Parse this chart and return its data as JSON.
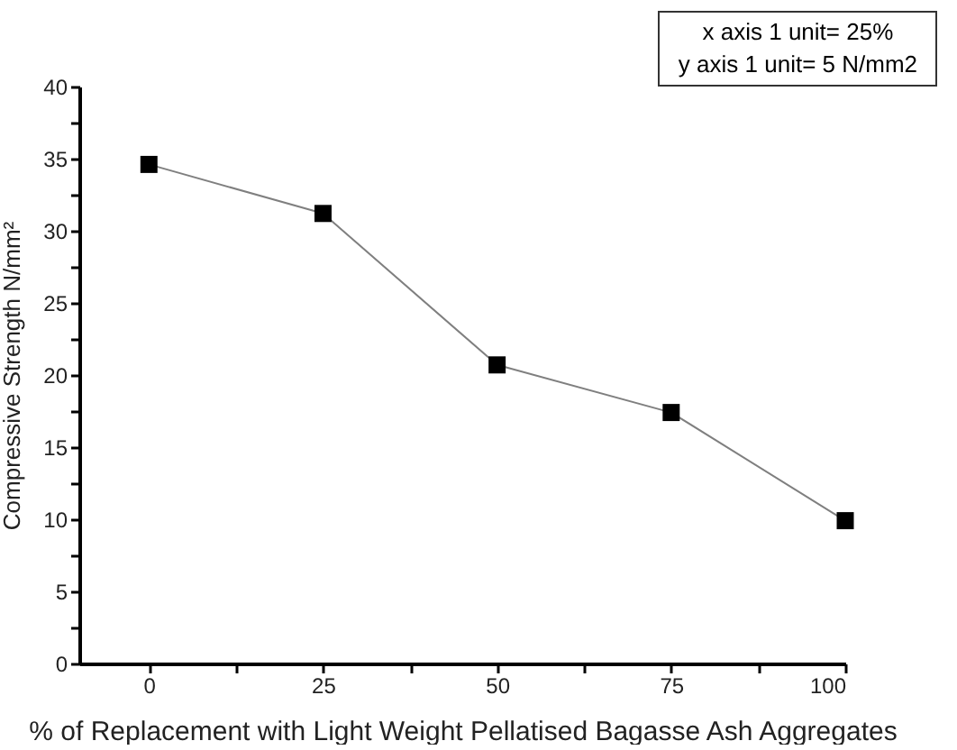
{
  "chart_data": {
    "type": "line",
    "xlabel": "% of Replacement with Light Weight Pellatised Bagasse Ash Aggregates",
    "ylabel": "Compressive Strength N/mm²",
    "annotations": [
      "x axis 1 unit= 25%",
      "y axis 1 unit= 5 N/mm2"
    ],
    "x": [
      0,
      25,
      50,
      75,
      100
    ],
    "series": [
      {
        "color": "#000000",
        "values": [
          34.6,
          31.2,
          20.7,
          17.4,
          9.9
        ]
      }
    ],
    "xlim": [
      -10,
      100
    ],
    "xticks": [
      0,
      {
        "value": 12.5,
        "label": null
      },
      25,
      {
        "value": 37.5,
        "label": null
      },
      50,
      {
        "value": 62.5,
        "label": null
      },
      75,
      {
        "value": 87.5,
        "label": null
      },
      100
    ],
    "ylim": [
      0,
      40
    ],
    "yticks": [
      0,
      {
        "value": 2.5,
        "label": null
      },
      5,
      {
        "value": 7.5,
        "label": null
      },
      10,
      {
        "value": 12.5,
        "label": null
      },
      15,
      {
        "value": 17.5,
        "label": null
      },
      20,
      {
        "value": 22.5,
        "label": null
      },
      25,
      {
        "value": 27.5,
        "label": null
      },
      30,
      {
        "value": 32.5,
        "label": null
      },
      35,
      {
        "value": 37.5,
        "label": null
      },
      40
    ],
    "grid": false,
    "marker": "square",
    "line_style": "solid"
  }
}
